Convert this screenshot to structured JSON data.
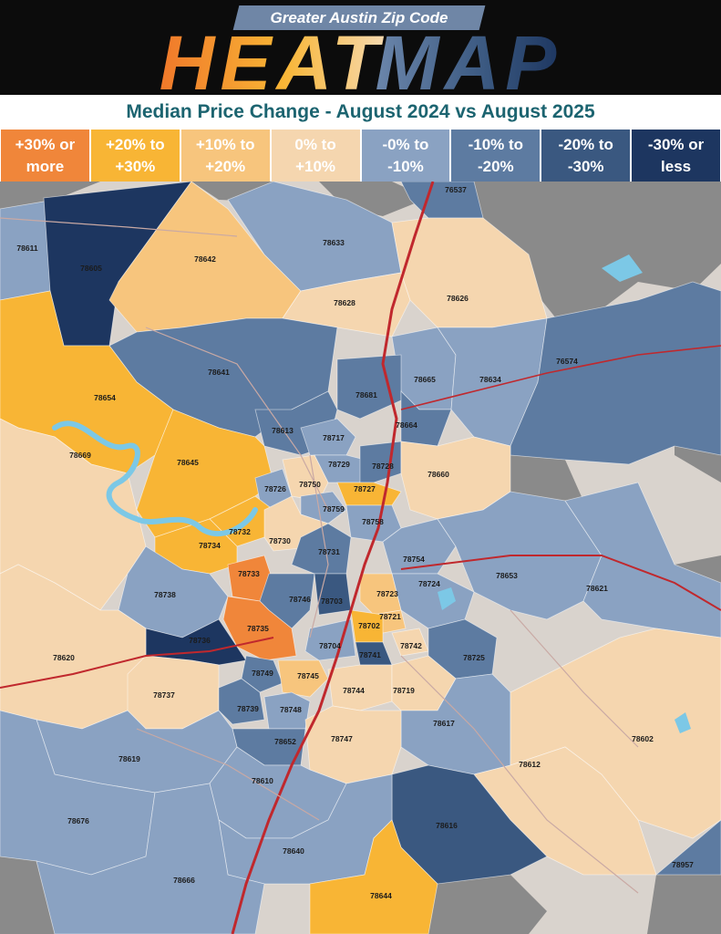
{
  "header": {
    "subtitle": "Greater Austin Zip Code",
    "title_word1": "HEAT",
    "title_word2": "MAP"
  },
  "chart_title": "Median Price Change - August 2024 vs August 2025",
  "legend": [
    {
      "line1": "+30% or",
      "line2": "more",
      "color": "#f0863a"
    },
    {
      "line1": "+20% to",
      "line2": "+30%",
      "color": "#f8b535"
    },
    {
      "line1": "+10% to",
      "line2": "+20%",
      "color": "#f7c57d"
    },
    {
      "line1": "0% to",
      "line2": "+10%",
      "color": "#f5d6af"
    },
    {
      "line1": "-0% to",
      "line2": "-10%",
      "color": "#8aa2c2"
    },
    {
      "line1": "-10% to",
      "line2": "-20%",
      "color": "#5d7ba1"
    },
    {
      "line1": "-20% to",
      "line2": "-30%",
      "color": "#3a5880"
    },
    {
      "line1": "-30% or",
      "line2": "less",
      "color": "#1d3660"
    }
  ],
  "colors": {
    "outside": "#8a8a8a",
    "water": "#7cc8e6",
    "highway": "#c0282d",
    "road": "#c9a9a4"
  },
  "chart_data": {
    "type": "heatmap",
    "zips": [
      {
        "zip": "76537",
        "category": 5
      },
      {
        "zip": "78611",
        "category": 4
      },
      {
        "zip": "78605",
        "category": 7
      },
      {
        "zip": "78642",
        "category": 2
      },
      {
        "zip": "78633",
        "category": 4
      },
      {
        "zip": "78628",
        "category": 3
      },
      {
        "zip": "78626",
        "category": 3
      },
      {
        "zip": "78641",
        "category": 5
      },
      {
        "zip": "78654",
        "category": 1
      },
      {
        "zip": "78665",
        "category": 4
      },
      {
        "zip": "78634",
        "category": 4
      },
      {
        "zip": "76574",
        "category": 5
      },
      {
        "zip": "78681",
        "category": 5
      },
      {
        "zip": "78664",
        "category": 5
      },
      {
        "zip": "78613",
        "category": 5
      },
      {
        "zip": "78717",
        "category": 4
      },
      {
        "zip": "78669",
        "category": 3
      },
      {
        "zip": "78645",
        "category": 1
      },
      {
        "zip": "78729",
        "category": 4
      },
      {
        "zip": "78728",
        "category": 5
      },
      {
        "zip": "78660",
        "category": 3
      },
      {
        "zip": "78726",
        "category": 4
      },
      {
        "zip": "78750",
        "category": 3
      },
      {
        "zip": "78727",
        "category": 1
      },
      {
        "zip": "78759",
        "category": 4
      },
      {
        "zip": "78758",
        "category": 4
      },
      {
        "zip": "78732",
        "category": 1
      },
      {
        "zip": "78734",
        "category": 1
      },
      {
        "zip": "78730",
        "category": 3
      },
      {
        "zip": "78731",
        "category": 5
      },
      {
        "zip": "78754",
        "category": 4
      },
      {
        "zip": "78653",
        "category": 4
      },
      {
        "zip": "78733",
        "category": 0
      },
      {
        "zip": "78724",
        "category": 4
      },
      {
        "zip": "78621",
        "category": 4
      },
      {
        "zip": "78738",
        "category": 4
      },
      {
        "zip": "78746",
        "category": 5
      },
      {
        "zip": "78703",
        "category": 6
      },
      {
        "zip": "78723",
        "category": 2
      },
      {
        "zip": "78721",
        "category": 2
      },
      {
        "zip": "78702",
        "category": 1
      },
      {
        "zip": "78735",
        "category": 0
      },
      {
        "zip": "78736",
        "category": 7
      },
      {
        "zip": "78704",
        "category": 4
      },
      {
        "zip": "78741",
        "category": 6
      },
      {
        "zip": "78742",
        "category": 3
      },
      {
        "zip": "78725",
        "category": 5
      },
      {
        "zip": "78620",
        "category": 3
      },
      {
        "zip": "78749",
        "category": 5
      },
      {
        "zip": "78745",
        "category": 2
      },
      {
        "zip": "78744",
        "category": 3
      },
      {
        "zip": "78719",
        "category": 3
      },
      {
        "zip": "78737",
        "category": 3
      },
      {
        "zip": "78739",
        "category": 5
      },
      {
        "zip": "78748",
        "category": 4
      },
      {
        "zip": "78617",
        "category": 4
      },
      {
        "zip": "78652",
        "category": 5
      },
      {
        "zip": "78747",
        "category": 3
      },
      {
        "zip": "78602",
        "category": 3
      },
      {
        "zip": "78619",
        "category": 4
      },
      {
        "zip": "78612",
        "category": 3
      },
      {
        "zip": "78610",
        "category": 4
      },
      {
        "zip": "78676",
        "category": 4
      },
      {
        "zip": "78616",
        "category": 6
      },
      {
        "zip": "78640",
        "category": 4
      },
      {
        "zip": "78957",
        "category": 5
      },
      {
        "zip": "78666",
        "category": 4
      },
      {
        "zip": "78644",
        "category": 1
      }
    ]
  }
}
